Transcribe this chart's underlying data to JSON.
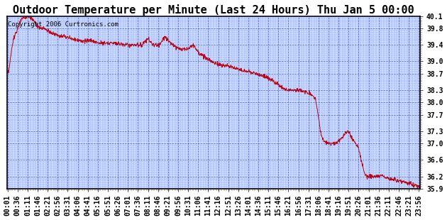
{
  "title": "Outdoor Temperature per Minute (Last 24 Hours) Thu Jan 5 00:00",
  "copyright_text": "Copyright 2006 Curtronics.com",
  "yticks": [
    40.1,
    39.8,
    39.4,
    39.0,
    38.7,
    38.3,
    38.0,
    37.7,
    37.3,
    37.0,
    36.6,
    36.2,
    35.9
  ],
  "ylim": [
    35.9,
    40.1
  ],
  "xlim": [
    0,
    1440
  ],
  "xtick_labels": [
    "00:01",
    "00:36",
    "01:11",
    "01:46",
    "02:21",
    "02:56",
    "03:31",
    "04:06",
    "04:41",
    "05:16",
    "05:51",
    "06:26",
    "07:01",
    "07:36",
    "08:11",
    "08:46",
    "09:21",
    "09:56",
    "10:31",
    "11:06",
    "11:41",
    "12:16",
    "12:51",
    "13:26",
    "14:01",
    "14:36",
    "15:11",
    "15:46",
    "16:21",
    "16:56",
    "17:31",
    "18:06",
    "18:41",
    "19:16",
    "19:51",
    "20:26",
    "21:01",
    "21:36",
    "22:11",
    "22:46",
    "23:21",
    "23:56"
  ],
  "xtick_positions": [
    1,
    36,
    71,
    106,
    141,
    176,
    211,
    246,
    281,
    316,
    351,
    386,
    421,
    456,
    491,
    526,
    561,
    596,
    631,
    666,
    701,
    736,
    771,
    806,
    841,
    876,
    911,
    946,
    981,
    1016,
    1051,
    1086,
    1121,
    1156,
    1191,
    1226,
    1261,
    1296,
    1331,
    1366,
    1401,
    1436
  ],
  "line_color": "#cc0000",
  "background_color": "#cce0ff",
  "grid_color": "#3333cc",
  "title_fontsize": 11,
  "tick_fontsize": 7,
  "copyright_fontsize": 6.5
}
